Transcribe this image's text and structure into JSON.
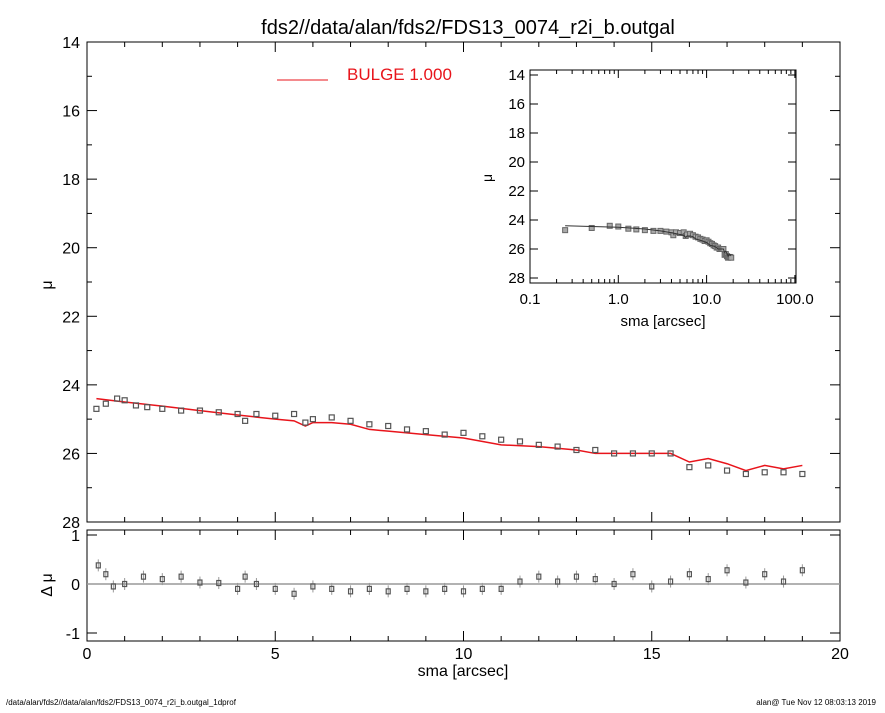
{
  "footer": {
    "left": "/data/alan/fds2//data/alan/fds2/FDS13_0074_r2i_b.outgal_1dprof",
    "right": "alan@  Tue Nov 12 08:03:13 2019"
  },
  "colors": {
    "model": "#e8141b",
    "data": "#555555",
    "axis": "#000000",
    "zero_line": "#999999"
  },
  "chart_data": [
    {
      "type": "scatter",
      "title": "fds2//data/alan/fds2/FDS13_0074_r2i_b.outgal",
      "xlabel": "",
      "ylabel": "μ",
      "xlim": [
        0,
        20
      ],
      "ylim": [
        28,
        14
      ],
      "y_inverted": true,
      "yticks": [
        "14",
        "16",
        "18",
        "20",
        "22",
        "24",
        "26",
        "28"
      ],
      "legend": {
        "position": "top-center",
        "entries": [
          {
            "label": "BULGE  1.000",
            "color": "#e8141b"
          }
        ]
      },
      "data": {
        "x": [
          0.25,
          0.5,
          0.8,
          1.0,
          1.3,
          1.6,
          2.0,
          2.5,
          3.0,
          3.5,
          4.0,
          4.2,
          4.5,
          5.0,
          5.5,
          5.8,
          6.0,
          6.5,
          7.0,
          7.5,
          8.0,
          8.5,
          9.0,
          9.5,
          10.0,
          10.5,
          11.0,
          11.5,
          12.0,
          12.5,
          13.0,
          13.5,
          14.0,
          14.5,
          15.0,
          15.5,
          16.0,
          16.5,
          17.0,
          17.5,
          18.0,
          18.5,
          19.0
        ],
        "y": [
          24.7,
          24.55,
          24.4,
          24.45,
          24.6,
          24.65,
          24.7,
          24.75,
          24.75,
          24.8,
          24.85,
          25.05,
          24.85,
          24.9,
          24.85,
          25.1,
          25.0,
          24.95,
          25.05,
          25.15,
          25.2,
          25.3,
          25.35,
          25.45,
          25.4,
          25.5,
          25.6,
          25.65,
          25.75,
          25.8,
          25.9,
          25.9,
          26.0,
          26.0,
          26.0,
          26.0,
          26.4,
          26.35,
          26.5,
          26.6,
          26.55,
          26.55,
          26.6
        ]
      },
      "model": {
        "name": "BULGE  1.000",
        "x": [
          0.25,
          1.0,
          2.0,
          3.0,
          4.0,
          5.0,
          5.5,
          5.8,
          6.0,
          6.5,
          7.0,
          7.5,
          8.0,
          9.0,
          10.0,
          11.0,
          12.0,
          13.0,
          13.5,
          14.0,
          15.0,
          15.5,
          16.0,
          16.5,
          17.0,
          17.5,
          18.0,
          18.5,
          19.0
        ],
        "y": [
          24.4,
          24.5,
          24.62,
          24.75,
          24.88,
          25.0,
          25.05,
          25.2,
          25.1,
          25.1,
          25.15,
          25.3,
          25.35,
          25.45,
          25.55,
          25.75,
          25.8,
          25.9,
          26.0,
          26.0,
          26.0,
          26.0,
          26.25,
          26.15,
          26.3,
          26.5,
          26.35,
          26.45,
          26.35
        ]
      }
    },
    {
      "type": "scatter",
      "xlabel": "sma [arcsec]",
      "ylabel": "Δ μ",
      "xlim": [
        0,
        20
      ],
      "ylim": [
        -1.1,
        1.1
      ],
      "xticks": [
        "0",
        "5",
        "10",
        "15",
        "20"
      ],
      "yticks": [
        "1",
        "0",
        "-1"
      ],
      "residuals": {
        "x": [
          0.3,
          0.5,
          0.7,
          1.0,
          1.5,
          2.0,
          2.5,
          3.0,
          3.5,
          4.0,
          4.2,
          4.5,
          5.0,
          5.5,
          6.0,
          6.5,
          7.0,
          7.5,
          8.0,
          8.5,
          9.0,
          9.5,
          10.0,
          10.5,
          11.0,
          11.5,
          12.0,
          12.5,
          13.0,
          13.5,
          14.0,
          14.5,
          15.0,
          15.5,
          16.0,
          16.5,
          17.0,
          17.5,
          18.0,
          18.5,
          19.0
        ],
        "y": [
          0.38,
          0.2,
          -0.05,
          0.0,
          0.15,
          0.1,
          0.15,
          0.03,
          0.02,
          -0.1,
          0.15,
          0.0,
          -0.1,
          -0.2,
          -0.05,
          -0.1,
          -0.15,
          -0.1,
          -0.15,
          -0.1,
          -0.15,
          -0.1,
          -0.15,
          -0.1,
          -0.1,
          0.05,
          0.15,
          0.05,
          0.15,
          0.1,
          0.0,
          0.2,
          -0.05,
          0.05,
          0.2,
          0.1,
          0.28,
          0.03,
          0.2,
          0.05,
          0.28
        ]
      }
    },
    {
      "type": "scatter",
      "xlabel": "sma [arcsec]",
      "ylabel": "μ",
      "xscale": "log",
      "xlim": [
        0.1,
        100
      ],
      "ylim": [
        28,
        14
      ],
      "xticks": [
        "0.1",
        "1.0",
        "10.0",
        "100.0"
      ],
      "yticks": [
        "14",
        "16",
        "18",
        "20",
        "22",
        "24",
        "26",
        "28"
      ]
    }
  ]
}
